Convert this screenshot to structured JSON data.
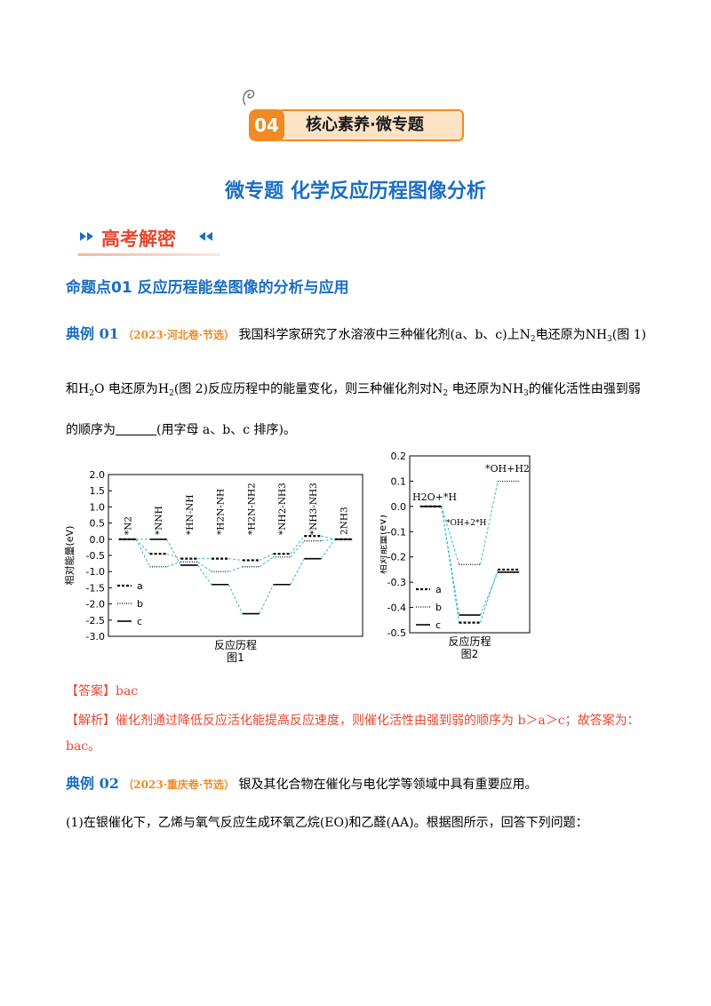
{
  "banner": {
    "number": "04",
    "label": "核心素养·微专题"
  },
  "page_title": "微专题  化学反应历程图像分析",
  "section_heading": "高考解密",
  "topic": "命题点01  反应历程能垒图像的分析与应用",
  "example1": {
    "label": "典例 01",
    "source": "（2023·河北卷·节选）",
    "text_a": "我国科学家研究了水溶液中三种催化剂(a、b、c)上",
    "n2": "N",
    "n2sub": "2",
    "text_b": "电还原为",
    "nh3": "NH",
    "nh3sub": "3",
    "text_c": "(图 1)",
    "line2_a": "和",
    "h2o": "H",
    "h2osub": "2",
    "h2o_o": "O",
    "line2_b": "电还原为",
    "h2": "H",
    "h2sub": "2",
    "line2_c": "(图 2)反应历程中的能量变化，则三种催化剂对",
    "line2_d": "电还原为",
    "line2_e": "的催化活性由强到弱",
    "line3_a": "的顺序为",
    "line3_b": "(用字母 a、b、c 排序)。"
  },
  "answer1": {
    "label": "【答案】",
    "text": "bac"
  },
  "analysis1": {
    "label": "【解析】",
    "text": "催化剂通过降低反应活化能提高反应速度，则催化活性由强到弱的顺序为 b＞a＞c；故答案为：",
    "text2": "bac。"
  },
  "example2": {
    "label": "典例 02",
    "source": "（2023·重庆卷·节选）",
    "text": "银及其化合物在催化与电化学等领域中具有重要应用。",
    "q1": "(1)在银催化下，乙烯与氧气反应生成环氧乙烷(EO)和乙醛(AA)。根据图所示，回答下列问题："
  },
  "chart_data": [
    {
      "type": "line",
      "title": "",
      "caption": "图1",
      "xlabel": "反应历程",
      "ylabel": "相对能量(eV)",
      "ylim": [
        -3.0,
        2.0
      ],
      "yticks": [
        "2.0",
        "1.5",
        "1.0",
        "0.5",
        "0.0",
        "-0.5",
        "-1.0",
        "-1.5",
        "-2.0",
        "-2.5",
        "-3.0"
      ],
      "x_labels": [
        "*N2",
        "*NNH",
        "*HN-NH",
        "*H2N-NH",
        "*H2N-NH2",
        "*NH2-NH3",
        "*NH3-NH3",
        "2NH3"
      ],
      "legend": [
        "a",
        "b",
        "c"
      ],
      "series": [
        {
          "name": "a",
          "values": [
            0.0,
            -0.45,
            -0.6,
            -0.6,
            -0.65,
            -0.45,
            0.1,
            0.0
          ]
        },
        {
          "name": "b",
          "values": [
            0.0,
            -0.85,
            -0.7,
            -1.0,
            -0.85,
            -0.55,
            -0.05,
            0.0
          ]
        },
        {
          "name": "c",
          "values": [
            0.0,
            0.0,
            -0.8,
            -1.4,
            -2.3,
            -1.4,
            -0.6,
            0.0
          ]
        }
      ]
    },
    {
      "type": "line",
      "title": "",
      "caption": "图2",
      "xlabel": "反应历程",
      "ylabel": "相对能量(eV)",
      "ylim": [
        -0.5,
        0.2
      ],
      "yticks": [
        "0.2",
        "0.1",
        "0.0",
        "-0.1",
        "-0.2",
        "-0.3",
        "-0.4",
        "-0.5"
      ],
      "x_labels": [
        "H2O+*H",
        "*OH+2*H",
        "*OH+H2"
      ],
      "legend": [
        "a",
        "b",
        "c"
      ],
      "series": [
        {
          "name": "a",
          "values": [
            0.0,
            -0.46,
            -0.25
          ]
        },
        {
          "name": "b",
          "values": [
            0.0,
            -0.23,
            0.1
          ]
        },
        {
          "name": "c",
          "values": [
            0.0,
            -0.43,
            -0.26
          ]
        }
      ]
    }
  ]
}
